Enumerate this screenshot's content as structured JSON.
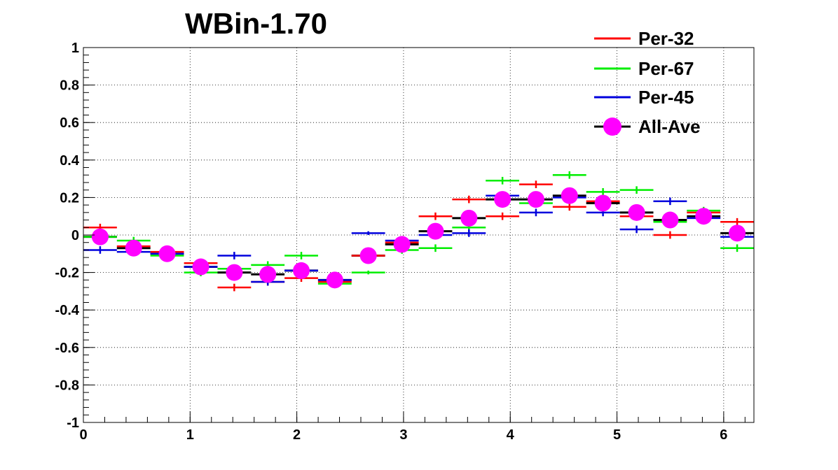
{
  "chart_data": {
    "type": "scatter",
    "title": "WBin-1.70",
    "xlabel": "",
    "ylabel": "",
    "xlim": [
      0,
      6.2832
    ],
    "ylim": [
      -1,
      1
    ],
    "x_ticks": [
      0,
      1,
      2,
      3,
      4,
      5,
      6
    ],
    "x_tick_labels": [
      "0",
      "1",
      "2",
      "3",
      "4",
      "5",
      "6"
    ],
    "y_ticks": [
      -1,
      -0.8,
      -0.6,
      -0.4,
      -0.2,
      0,
      0.2,
      0.4,
      0.6,
      0.8,
      1
    ],
    "y_tick_labels": [
      "-1",
      "-0.8",
      "-0.6",
      "-0.4",
      "-0.2",
      "0",
      "0.2",
      "0.4",
      "0.6",
      "0.8",
      "1"
    ],
    "grid": true,
    "legend_position": "top-right",
    "bins": 20,
    "x": [
      0.157,
      0.471,
      0.785,
      1.1,
      1.414,
      1.728,
      2.042,
      2.356,
      2.67,
      2.985,
      3.299,
      3.613,
      3.927,
      4.241,
      4.555,
      4.869,
      5.184,
      5.498,
      5.812,
      6.126
    ],
    "series": [
      {
        "name": "Per-32",
        "color": "#ff0000",
        "marker": "cross",
        "errors": [
          0.02,
          0.02,
          0.01,
          0.02,
          0.02,
          0.02,
          0.02,
          0.01,
          0.01,
          0.02,
          0.02,
          0.02,
          0.02,
          0.02,
          0.02,
          0.02,
          0.02,
          0.02,
          0.02,
          0.02
        ],
        "values": [
          0.04,
          -0.06,
          -0.09,
          -0.15,
          -0.28,
          -0.25,
          -0.23,
          -0.25,
          -0.11,
          -0.04,
          0.1,
          0.19,
          0.1,
          0.27,
          0.15,
          0.18,
          0.1,
          0.0,
          0.12,
          0.07
        ]
      },
      {
        "name": "Per-67",
        "color": "#00ee00",
        "marker": "cross",
        "errors": [
          0.02,
          0.02,
          0.01,
          0.02,
          0.02,
          0.02,
          0.02,
          0.01,
          0.01,
          0.02,
          0.02,
          0.02,
          0.02,
          0.02,
          0.02,
          0.02,
          0.02,
          0.02,
          0.02,
          0.02
        ],
        "values": [
          -0.01,
          -0.03,
          -0.11,
          -0.2,
          -0.18,
          -0.16,
          -0.11,
          -0.26,
          -0.2,
          -0.08,
          -0.07,
          0.04,
          0.29,
          0.17,
          0.32,
          0.23,
          0.24,
          0.07,
          0.13,
          -0.07
        ]
      },
      {
        "name": "Per-45",
        "color": "#0000dd",
        "marker": "cross",
        "errors": [
          0.02,
          0.02,
          0.01,
          0.02,
          0.02,
          0.02,
          0.02,
          0.01,
          0.01,
          0.02,
          0.02,
          0.02,
          0.02,
          0.02,
          0.02,
          0.02,
          0.02,
          0.02,
          0.02,
          0.02
        ],
        "values": [
          -0.08,
          -0.09,
          -0.1,
          -0.17,
          -0.11,
          -0.25,
          -0.19,
          -0.24,
          0.01,
          -0.03,
          0.0,
          0.01,
          0.21,
          0.12,
          0.2,
          0.12,
          0.03,
          0.18,
          0.09,
          -0.01
        ]
      },
      {
        "name": "All-Ave",
        "color": "#ff00ff",
        "marker": "circle",
        "bar_color": "#000000",
        "values": [
          -0.01,
          -0.07,
          -0.1,
          -0.17,
          -0.2,
          -0.21,
          -0.19,
          -0.24,
          -0.11,
          -0.05,
          0.02,
          0.09,
          0.19,
          0.19,
          0.21,
          0.17,
          0.12,
          0.08,
          0.1,
          0.01
        ]
      }
    ]
  }
}
